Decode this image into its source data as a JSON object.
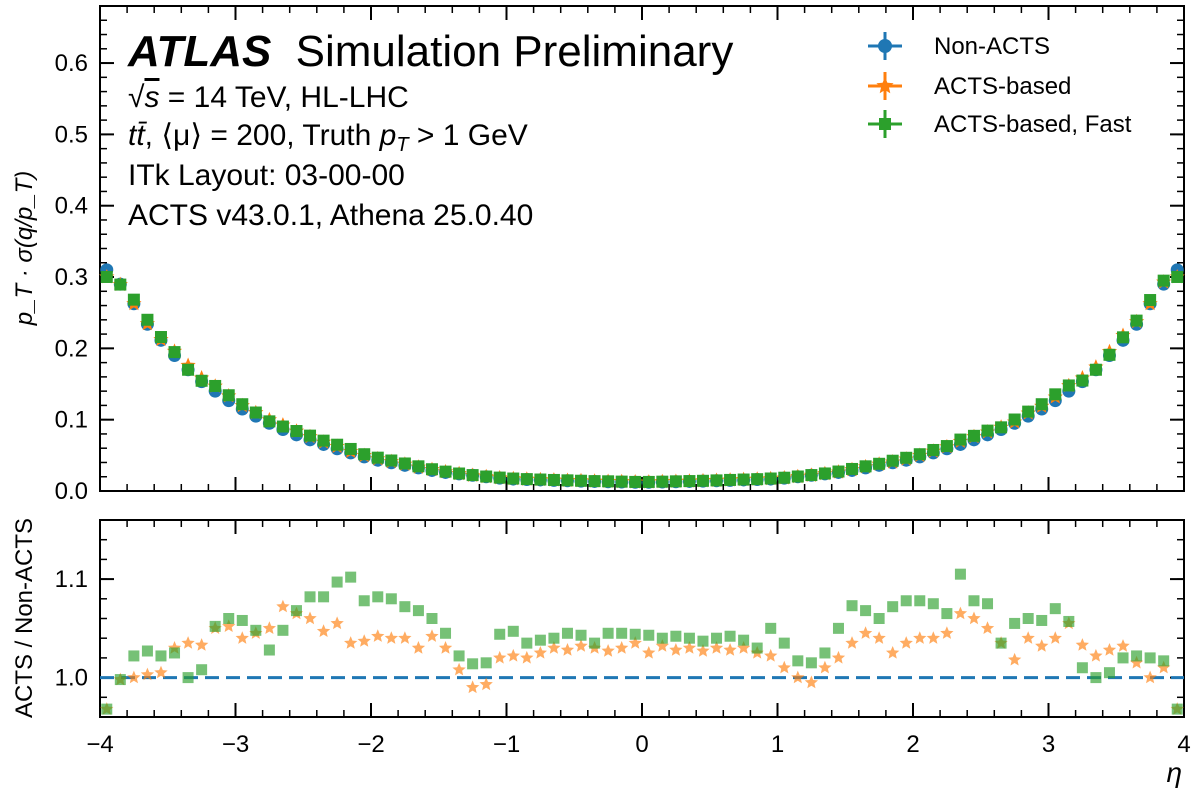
{
  "chart_data": [
    {
      "type": "scatter",
      "panel": "main",
      "ylabel": "p_T · σ(q/p_T)",
      "xlim": [
        -4,
        4
      ],
      "ylim": [
        0,
        0.68
      ],
      "yticks": [
        "0.0",
        "0.1",
        "0.2",
        "0.3",
        "0.4",
        "0.5",
        "0.6"
      ],
      "legend": {
        "placement": "top-right",
        "entries": [
          "Non-ACTS",
          "ACTS-based",
          "ACTS-based, Fast"
        ]
      },
      "annotations": {
        "atlas": "ATLAS",
        "atlas_suffix": "Simulation Preliminary",
        "energy_sqrt": "√",
        "energy_s": "s",
        "energy_value": " = 14 TeV, HL-LHC",
        "ttbar": "tt̄",
        "mu": ", ⟨μ⟩ = 200, Truth ",
        "pt": "p",
        "pt_sub": "T",
        "pt_cut": " > 1 GeV",
        "layout": "ITk Layout: 03-00-00",
        "software": "ACTS v43.0.1, Athena 25.0.40"
      },
      "series_colors": [
        "#1f77b4",
        "#ff7f0e",
        "#2ca02c"
      ],
      "resolution_curve": {
        "eta": [
          0,
          0.5,
          1.0,
          1.5,
          2.0,
          2.3,
          2.5,
          2.7,
          3.0,
          3.3,
          3.5,
          3.7,
          3.8,
          3.95
        ],
        "value": [
          0.012,
          0.014,
          0.017,
          0.027,
          0.045,
          0.062,
          0.075,
          0.09,
          0.12,
          0.16,
          0.2,
          0.245,
          0.28,
          0.31
        ]
      }
    },
    {
      "type": "scatter",
      "panel": "ratio",
      "xlabel": "η",
      "ylabel": "ACTS / Non-ACTS",
      "xlim": [
        -4,
        4
      ],
      "ylim": [
        0.96,
        1.16
      ],
      "xticks": [
        "−4",
        "−3",
        "−2",
        "−1",
        "0",
        "1",
        "2",
        "3",
        "4"
      ],
      "yticks": [
        "1.0",
        "1.1"
      ],
      "reference_line": 1.0,
      "series": [
        {
          "name": "ACTS-based",
          "eta": [
            -3.95,
            -3.85,
            -3.75,
            -3.65,
            -3.55,
            -3.45,
            -3.35,
            -3.25,
            -3.15,
            -3.05,
            -2.95,
            -2.85,
            -2.75,
            -2.65,
            -2.55,
            -2.45,
            -2.35,
            -2.25,
            -2.15,
            -2.05,
            -1.95,
            -1.85,
            -1.75,
            -1.65,
            -1.55,
            -1.45,
            -1.35,
            -1.25,
            -1.15,
            -1.05,
            -0.95,
            -0.85,
            -0.75,
            -0.65,
            -0.55,
            -0.45,
            -0.35,
            -0.25,
            -0.15,
            -0.05,
            0.05,
            0.15,
            0.25,
            0.35,
            0.45,
            0.55,
            0.65,
            0.75,
            0.85,
            0.95,
            1.05,
            1.15,
            1.25,
            1.35,
            1.45,
            1.55,
            1.65,
            1.75,
            1.85,
            1.95,
            2.05,
            2.15,
            2.25,
            2.35,
            2.45,
            2.55,
            2.65,
            2.75,
            2.85,
            2.95,
            3.05,
            3.15,
            3.25,
            3.35,
            3.45,
            3.55,
            3.65,
            3.75,
            3.85,
            3.95
          ],
          "values": [
            0.968,
            0.998,
            1.0,
            1.003,
            1.005,
            1.03,
            1.035,
            1.033,
            1.05,
            1.052,
            1.04,
            1.045,
            1.05,
            1.072,
            1.065,
            1.06,
            1.047,
            1.055,
            1.035,
            1.037,
            1.042,
            1.04,
            1.04,
            1.03,
            1.042,
            1.03,
            1.008,
            0.99,
            0.993,
            1.02,
            1.022,
            1.02,
            1.025,
            1.03,
            1.028,
            1.032,
            1.03,
            1.027,
            1.03,
            1.035,
            1.025,
            1.032,
            1.028,
            1.03,
            1.027,
            1.03,
            1.028,
            1.03,
            1.025,
            1.022,
            1.01,
            1.0,
            0.995,
            1.01,
            1.02,
            1.035,
            1.045,
            1.04,
            1.025,
            1.035,
            1.04,
            1.04,
            1.045,
            1.065,
            1.06,
            1.05,
            1.035,
            1.018,
            1.04,
            1.032,
            1.04,
            1.055,
            1.033,
            1.022,
            1.028,
            1.032,
            1.015,
            1.0,
            1.01,
            0.968
          ]
        },
        {
          "name": "ACTS-based, Fast",
          "eta": [
            -3.95,
            -3.85,
            -3.75,
            -3.65,
            -3.55,
            -3.45,
            -3.35,
            -3.25,
            -3.15,
            -3.05,
            -2.95,
            -2.85,
            -2.75,
            -2.65,
            -2.55,
            -2.45,
            -2.35,
            -2.25,
            -2.15,
            -2.05,
            -1.95,
            -1.85,
            -1.75,
            -1.65,
            -1.55,
            -1.45,
            -1.35,
            -1.25,
            -1.15,
            -1.05,
            -0.95,
            -0.85,
            -0.75,
            -0.65,
            -0.55,
            -0.45,
            -0.35,
            -0.25,
            -0.15,
            -0.05,
            0.05,
            0.15,
            0.25,
            0.35,
            0.45,
            0.55,
            0.65,
            0.75,
            0.85,
            0.95,
            1.05,
            1.15,
            1.25,
            1.35,
            1.45,
            1.55,
            1.65,
            1.75,
            1.85,
            1.95,
            2.05,
            2.15,
            2.25,
            2.35,
            2.45,
            2.55,
            2.65,
            2.75,
            2.85,
            2.95,
            3.05,
            3.15,
            3.25,
            3.35,
            3.45,
            3.55,
            3.65,
            3.75,
            3.85,
            3.95
          ],
          "values": [
            0.968,
            0.998,
            1.022,
            1.027,
            1.022,
            1.025,
            1.0,
            1.008,
            1.052,
            1.06,
            1.058,
            1.048,
            1.028,
            1.048,
            1.068,
            1.082,
            1.082,
            1.097,
            1.102,
            1.078,
            1.082,
            1.08,
            1.072,
            1.068,
            1.06,
            1.045,
            1.022,
            1.014,
            1.015,
            1.044,
            1.047,
            1.035,
            1.038,
            1.04,
            1.045,
            1.043,
            1.035,
            1.045,
            1.045,
            1.044,
            1.043,
            1.04,
            1.042,
            1.04,
            1.037,
            1.04,
            1.042,
            1.038,
            1.03,
            1.05,
            1.035,
            1.017,
            1.015,
            1.025,
            1.05,
            1.073,
            1.068,
            1.06,
            1.072,
            1.078,
            1.078,
            1.075,
            1.065,
            1.105,
            1.078,
            1.075,
            1.035,
            1.055,
            1.06,
            1.058,
            1.07,
            1.057,
            1.01,
            1.0,
            1.005,
            1.02,
            1.022,
            1.02,
            1.017,
            0.968
          ]
        }
      ]
    }
  ]
}
